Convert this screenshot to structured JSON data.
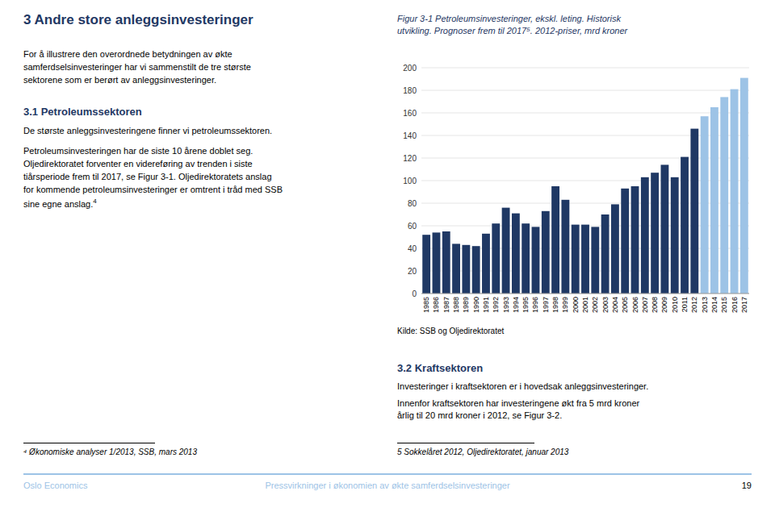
{
  "chart_data": {
    "type": "bar",
    "title": "Figur  3-1  Petroleumsinvesteringer, ekskl.  leting.  Historisk utvikling. Prognoser frem til 2017⁵. 2012-priser, mrd kroner",
    "source": "Kilde: SSB og Oljedirektoratet",
    "categories": [
      "1985",
      "1986",
      "1987",
      "1988",
      "1989",
      "1990",
      "1991",
      "1992",
      "1993",
      "1994",
      "1995",
      "1996",
      "1997",
      "1998",
      "1999",
      "2000",
      "2001",
      "2002",
      "2003",
      "2004",
      "2005",
      "2006",
      "2007",
      "2008",
      "2009",
      "2010",
      "2011",
      "2012",
      "2013",
      "2014",
      "2015",
      "2016",
      "2017"
    ],
    "values": [
      52,
      54,
      55,
      44,
      43,
      42,
      53,
      62,
      76,
      71,
      62,
      59,
      73,
      95,
      83,
      61,
      61,
      59,
      70,
      79,
      93,
      95,
      103,
      107,
      114,
      103,
      121,
      146,
      157,
      165,
      174,
      181,
      191
    ],
    "colors": [
      "#1F3864",
      "#1F3864",
      "#1F3864",
      "#1F3864",
      "#1F3864",
      "#1F3864",
      "#1F3864",
      "#1F3864",
      "#1F3864",
      "#1F3864",
      "#1F3864",
      "#1F3864",
      "#1F3864",
      "#1F3864",
      "#1F3864",
      "#1F3864",
      "#1F3864",
      "#1F3864",
      "#1F3864",
      "#1F3864",
      "#1F3864",
      "#1F3864",
      "#1F3864",
      "#1F3864",
      "#1F3864",
      "#1F3864",
      "#1F3864",
      "#1F3864",
      "#9DC3E6",
      "#9DC3E6",
      "#9DC3E6",
      "#9DC3E6",
      "#9DC3E6"
    ],
    "ylim": [
      0,
      200
    ],
    "yticks": [
      0,
      20,
      40,
      60,
      80,
      100,
      120,
      140,
      160,
      180,
      200
    ],
    "grid": true
  },
  "page": {
    "left_heading": "3   Andre store anleggsinvesteringer",
    "left_para1": "For  å  illustrere  den  overordnede  betydningen  av  økte\nsamferdselsinvesteringer  har  vi  sammenstilt  de  tre  største\nsektorene som er berørt av anleggsinvesteringer.",
    "left_sub1": "3.1  Petroleumssektoren",
    "left_para2": "De største anleggsinvesteringene finner vi petroleumssektoren.",
    "left_para3": "Petroleumsinvesteringen  har  de  siste  10  årene  doblet  seg.\nOljedirektoratet  forventer  en  videreføring  av  trenden  i  siste\ntiårsperiode frem til 2017, se Figur 3-1.  Oljedirektoratets anslag\nfor kommende petroleumsinvesteringer er omtrent i tråd med SSB\nsine egne anslag.",
    "left_super4": "4",
    "right_sub1": "3.2  Kraftsektoren",
    "right_para1": "Investeringer  i  kraftsektoren  er  i  hovedsak  anleggsinvesteringer.",
    "right_para2": "Innenfor  kraftsektoren  har  investeringene  økt  fra  5  mrd  kroner\nårlig til 20 mrd kroner i 2012, se Figur 3-2.",
    "footnote_left": "⁴ Økonomiske analyser 1/2013, SSB, mars 2013",
    "footnote_right": "5 Sokkelåret 2012, Oljedirektoratet, januar 2013",
    "footer_left": "Oslo Economics",
    "footer_center": "Pressvirkninger i økonomien av økte samferdselsinvesteringer",
    "footer_right": "19"
  }
}
